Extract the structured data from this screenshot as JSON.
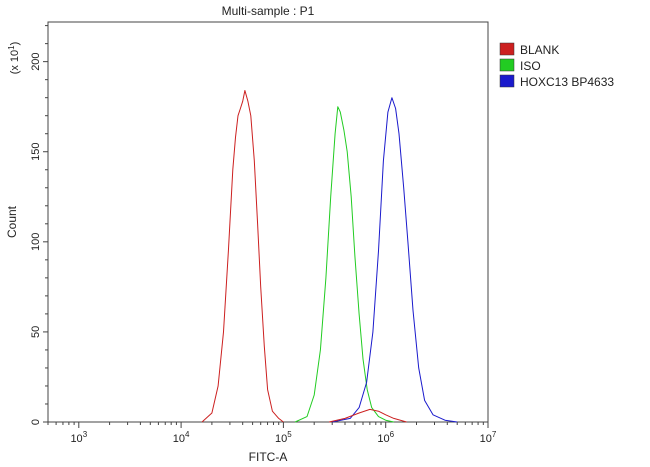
{
  "chart_data": {
    "type": "line",
    "title": "Multi-sample : P1",
    "xlabel": "FITC-A",
    "ylabel": "Count",
    "y_multiplier_label": "(x 10",
    "y_multiplier_exp": "1",
    "x_scale": "log",
    "xlim": [
      500,
      10000000
    ],
    "ylim": [
      0,
      222
    ],
    "x_ticks": [
      {
        "base": "10",
        "exp": "3",
        "value": 1000
      },
      {
        "base": "10",
        "exp": "4",
        "value": 10000
      },
      {
        "base": "10",
        "exp": "5",
        "value": 100000
      },
      {
        "base": "10",
        "exp": "6",
        "value": 1000000
      },
      {
        "base": "10",
        "exp": "7",
        "value": 10000000
      }
    ],
    "y_ticks": [
      0,
      50,
      100,
      150,
      200
    ],
    "grid": false,
    "legend_position": "right",
    "series": [
      {
        "name": "BLANK",
        "color": "#cc2020",
        "points": [
          [
            16000,
            0
          ],
          [
            20000,
            5
          ],
          [
            23000,
            20
          ],
          [
            26000,
            50
          ],
          [
            29000,
            95
          ],
          [
            32000,
            140
          ],
          [
            34000,
            158
          ],
          [
            36000,
            170
          ],
          [
            38000,
            174
          ],
          [
            40000,
            178
          ],
          [
            42000,
            184
          ],
          [
            45000,
            178
          ],
          [
            48000,
            170
          ],
          [
            52000,
            145
          ],
          [
            56000,
            110
          ],
          [
            60000,
            75
          ],
          [
            65000,
            42
          ],
          [
            70000,
            18
          ],
          [
            78000,
            6
          ],
          [
            90000,
            2
          ],
          [
            100000,
            0
          ]
        ]
      },
      {
        "name": "ISO",
        "color": "#22cc22",
        "points": [
          [
            130000,
            0
          ],
          [
            170000,
            3
          ],
          [
            200000,
            15
          ],
          [
            230000,
            40
          ],
          [
            260000,
            80
          ],
          [
            290000,
            125
          ],
          [
            320000,
            160
          ],
          [
            340000,
            175
          ],
          [
            360000,
            172
          ],
          [
            390000,
            162
          ],
          [
            420000,
            150
          ],
          [
            460000,
            125
          ],
          [
            500000,
            92
          ],
          [
            550000,
            60
          ],
          [
            600000,
            35
          ],
          [
            660000,
            18
          ],
          [
            730000,
            8
          ],
          [
            850000,
            3
          ],
          [
            1000000,
            1
          ],
          [
            1200000,
            0
          ]
        ]
      },
      {
        "name": "HOXC13 BP4633",
        "color": "#1a1acc",
        "points": [
          [
            300000,
            0
          ],
          [
            450000,
            2
          ],
          [
            550000,
            8
          ],
          [
            650000,
            22
          ],
          [
            750000,
            50
          ],
          [
            850000,
            95
          ],
          [
            950000,
            145
          ],
          [
            1050000,
            172
          ],
          [
            1150000,
            180
          ],
          [
            1250000,
            174
          ],
          [
            1350000,
            160
          ],
          [
            1500000,
            130
          ],
          [
            1650000,
            100
          ],
          [
            1850000,
            62
          ],
          [
            2100000,
            30
          ],
          [
            2400000,
            12
          ],
          [
            2900000,
            4
          ],
          [
            3800000,
            1
          ],
          [
            5000000,
            0
          ]
        ]
      }
    ],
    "extra_trace": {
      "color": "#cc2020",
      "points": [
        [
          280000,
          0
        ],
        [
          400000,
          2
        ],
        [
          550000,
          5
        ],
        [
          700000,
          7
        ],
        [
          850000,
          6
        ],
        [
          1000000,
          4
        ],
        [
          1200000,
          2
        ],
        [
          1600000,
          0
        ]
      ]
    }
  }
}
